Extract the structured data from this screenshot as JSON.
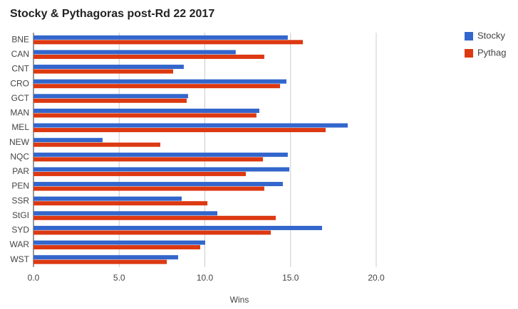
{
  "chart_data": {
    "type": "hbar",
    "title": "Stocky & Pythagoras post-Rd 22 2017",
    "x_label": "Wins",
    "categories": [
      "BNE",
      "CAN",
      "CNT",
      "CRO",
      "GCT",
      "MAN",
      "MEL",
      "NEW",
      "NQC",
      "PAR",
      "PEN",
      "SSR",
      "StGI",
      "SYD",
      "WAR",
      "WST"
    ],
    "series": [
      {
        "name": "Stocky",
        "color": "#3366cc",
        "values": [
          14.84,
          11.8,
          8.77,
          14.76,
          9.02,
          13.18,
          18.34,
          4.03,
          14.84,
          14.93,
          14.55,
          8.65,
          10.73,
          16.84,
          10.02,
          8.44
        ]
      },
      {
        "name": "Pythag",
        "color": "#dc3912",
        "values": [
          15.72,
          13.47,
          8.15,
          14.39,
          8.94,
          13.01,
          17.05,
          7.4,
          13.39,
          12.39,
          13.47,
          10.15,
          14.14,
          13.85,
          9.73,
          7.78
        ]
      }
    ],
    "xlim": [
      0,
      20
    ],
    "xticks": [
      {
        "value": 0,
        "label": "0.0"
      },
      {
        "value": 5,
        "label": "5.0"
      },
      {
        "value": 10,
        "label": "10.0"
      },
      {
        "value": 15,
        "label": "15.0"
      },
      {
        "value": 20,
        "label": "20.0"
      }
    ],
    "grid": true,
    "legend": "right"
  }
}
